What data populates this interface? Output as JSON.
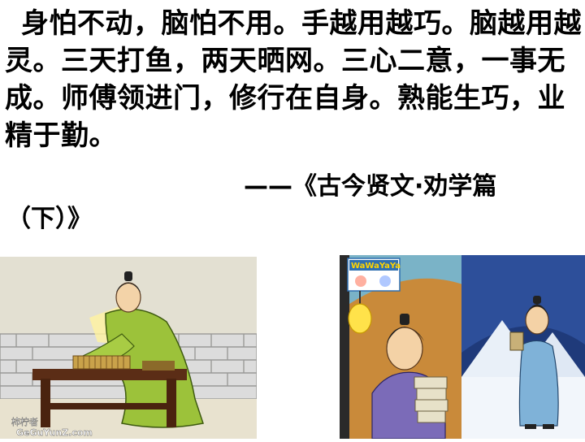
{
  "quote": {
    "text": "身怕不动，脑怕不用。手越用越巧。脑越用越灵。三天打鱼，两天晒网。三心二意，一事无成。师傅领进门，修行在自身。熟能生巧，业精于勤。"
  },
  "source": {
    "line1": "——《古今贤文·劝学篇",
    "line2": "（下）》"
  },
  "images": {
    "left": {
      "subject": "scholar-reading-bamboo-scrolls-painting",
      "watermark": "GeGuYunZ.com",
      "watermark_cn": "柿柠者"
    },
    "right": {
      "subject": "cartoon-scholar-studying-night-snow",
      "logo": "WaWaYaYa"
    }
  },
  "colors": {
    "background": "#ffffff",
    "text": "#000000",
    "robe_left": "#9cc23a",
    "robe_right": "#7fb2d8",
    "night_sky": "#1f3a7a"
  }
}
